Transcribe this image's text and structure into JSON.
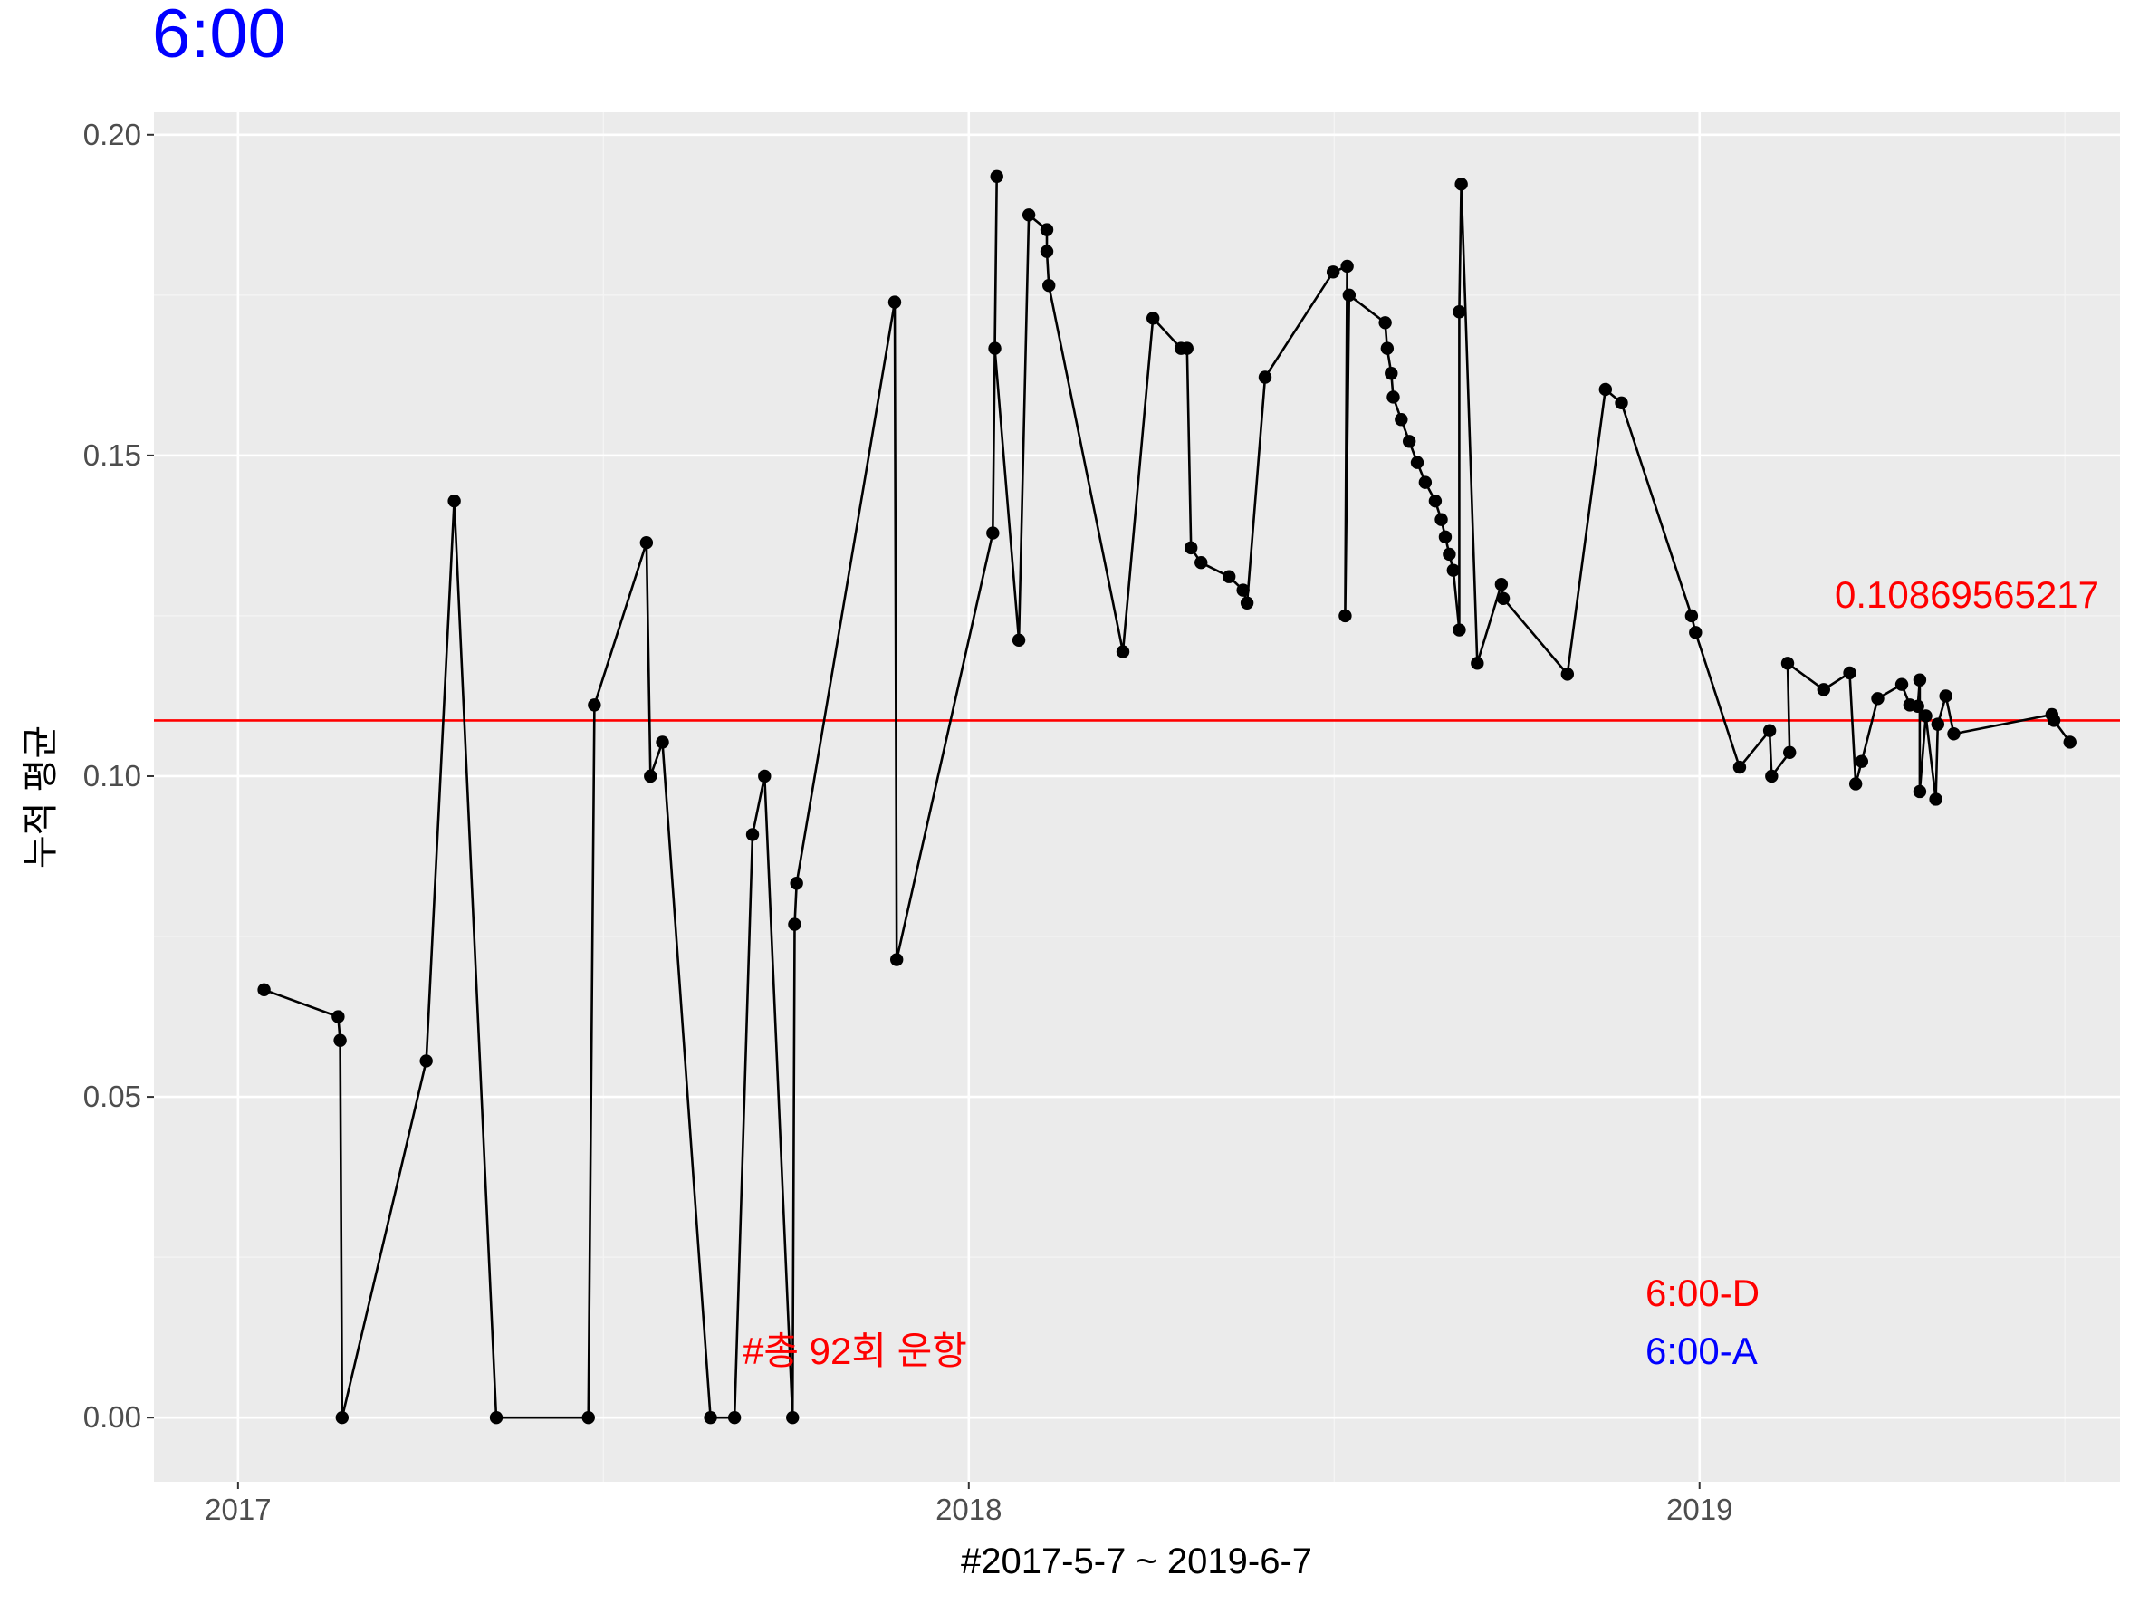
{
  "colors": {
    "panel_bg": "#ebebeb",
    "grid_major": "#ffffff",
    "grid_minor": "#f4f4f4",
    "series": "#000000",
    "reference_line": "#ff0000",
    "title": "#0000ff",
    "annotation_red": "#ff0000",
    "annotation_blue": "#0000ff"
  },
  "chart_data": {
    "type": "line",
    "title": "6:00",
    "xlabel": "#2017-5-7 ~ 2019-6-7",
    "ylabel": "누적 평균",
    "xlim": [
      "2016-11-20",
      "2019-07-30"
    ],
    "ylim": [
      -0.01,
      0.2035
    ],
    "x_ticks": [
      {
        "value": "2017-01-01",
        "label": "2017"
      },
      {
        "value": "2018-01-01",
        "label": "2018"
      },
      {
        "value": "2019-01-01",
        "label": "2019"
      }
    ],
    "y_ticks": [
      {
        "value": 0.0,
        "label": "0.00"
      },
      {
        "value": 0.05,
        "label": "0.05"
      },
      {
        "value": 0.1,
        "label": "0.10"
      },
      {
        "value": 0.15,
        "label": "0.15"
      },
      {
        "value": 0.2,
        "label": "0.20"
      }
    ],
    "grid": true,
    "reference_line": {
      "y": 0.108695652173913,
      "label": "0.10869565217"
    },
    "annotations": [
      {
        "text": "#총 92회 운항",
        "x": "2017-09-10",
        "y": 0.0105,
        "color": "red"
      },
      {
        "text": "6:00-D",
        "x": "2018-12-05",
        "y": 0.0195,
        "color": "red"
      },
      {
        "text": "6:00-A",
        "x": "2018-12-05",
        "y": 0.0105,
        "color": "blue"
      }
    ],
    "series": [
      {
        "points": [
          [
            "2017-01-14",
            0.0667
          ],
          [
            "2017-02-20",
            0.0625
          ],
          [
            "2017-02-21",
            0.0588
          ],
          [
            "2017-02-22",
            0.0
          ],
          [
            "2017-04-05",
            0.0556
          ],
          [
            "2017-04-19",
            0.1429
          ],
          [
            "2017-05-10",
            0.0
          ],
          [
            "2017-06-25",
            0.0
          ],
          [
            "2017-06-28",
            0.1111
          ],
          [
            "2017-07-24",
            0.1364
          ],
          [
            "2017-07-26",
            0.1
          ],
          [
            "2017-08-01",
            0.1053
          ],
          [
            "2017-08-25",
            0.0
          ],
          [
            "2017-09-06",
            0.0
          ],
          [
            "2017-09-15",
            0.0909
          ],
          [
            "2017-09-21",
            0.1
          ],
          [
            "2017-10-05",
            0.0
          ],
          [
            "2017-10-06",
            0.0769
          ],
          [
            "2017-10-07",
            0.0833
          ],
          [
            "2017-11-25",
            0.1739
          ],
          [
            "2017-11-26",
            0.0714
          ],
          [
            "2018-01-13",
            0.1379
          ],
          [
            "2018-01-15",
            0.1935
          ],
          [
            "2018-01-14",
            0.1667
          ],
          [
            "2018-01-26",
            0.1212
          ],
          [
            "2018-01-31",
            0.1875
          ],
          [
            "2018-02-09",
            0.1852
          ],
          [
            "2018-02-09",
            0.1818
          ],
          [
            "2018-02-10",
            0.1765
          ],
          [
            "2018-03-19",
            0.1194
          ],
          [
            "2018-04-03",
            0.1714
          ],
          [
            "2018-04-17",
            0.1667
          ],
          [
            "2018-04-20",
            0.1667
          ],
          [
            "2018-04-22",
            0.1356
          ],
          [
            "2018-04-27",
            0.1333
          ],
          [
            "2018-05-11",
            0.1311
          ],
          [
            "2018-05-18",
            0.129
          ],
          [
            "2018-05-20",
            0.127
          ],
          [
            "2018-05-29",
            0.1622
          ],
          [
            "2018-07-02",
            0.1786
          ],
          [
            "2018-07-09",
            0.1795
          ],
          [
            "2018-07-08",
            0.125
          ],
          [
            "2018-07-10",
            0.175
          ],
          [
            "2018-07-28",
            0.1707
          ],
          [
            "2018-07-29",
            0.1667
          ],
          [
            "2018-07-31",
            0.1628
          ],
          [
            "2018-08-01",
            0.1591
          ],
          [
            "2018-08-05",
            0.1556
          ],
          [
            "2018-08-09",
            0.1522
          ],
          [
            "2018-08-13",
            0.1489
          ],
          [
            "2018-08-17",
            0.1458
          ],
          [
            "2018-08-22",
            0.1429
          ],
          [
            "2018-08-25",
            0.14
          ],
          [
            "2018-08-27",
            0.1373
          ],
          [
            "2018-08-29",
            0.1346
          ],
          [
            "2018-08-31",
            0.1321
          ],
          [
            "2018-09-03",
            0.1228
          ],
          [
            "2018-09-03",
            0.1724
          ],
          [
            "2018-09-04",
            0.1923
          ],
          [
            "2018-09-12",
            0.1176
          ],
          [
            "2018-09-24",
            0.1299
          ],
          [
            "2018-09-25",
            0.1277
          ],
          [
            "2018-10-27",
            0.1159
          ],
          [
            "2018-11-15",
            0.1603
          ],
          [
            "2018-11-23",
            0.1582
          ],
          [
            "2018-12-28",
            0.125
          ],
          [
            "2018-12-30",
            0.1224
          ],
          [
            "2019-01-21",
            0.1014
          ],
          [
            "2019-02-05",
            0.1071
          ],
          [
            "2019-02-06",
            0.1
          ],
          [
            "2019-02-15",
            0.1037
          ],
          [
            "2019-02-14",
            0.1176
          ],
          [
            "2019-03-04",
            0.1135
          ],
          [
            "2019-03-17",
            0.1161
          ],
          [
            "2019-03-20",
            0.0988
          ],
          [
            "2019-03-23",
            0.1023
          ],
          [
            "2019-03-31",
            0.1121
          ],
          [
            "2019-04-12",
            0.1143
          ],
          [
            "2019-04-16",
            0.1111
          ],
          [
            "2019-04-20",
            0.1109
          ],
          [
            "2019-04-21",
            0.115
          ],
          [
            "2019-04-21",
            0.0976
          ],
          [
            "2019-04-24",
            0.1094
          ],
          [
            "2019-04-29",
            0.0964
          ],
          [
            "2019-04-30",
            0.1081
          ],
          [
            "2019-05-04",
            0.1125
          ],
          [
            "2019-05-08",
            0.1066
          ],
          [
            "2019-06-26",
            0.1096
          ],
          [
            "2019-06-27",
            0.1087
          ],
          [
            "2019-07-05",
            0.1053
          ]
        ]
      }
    ]
  }
}
